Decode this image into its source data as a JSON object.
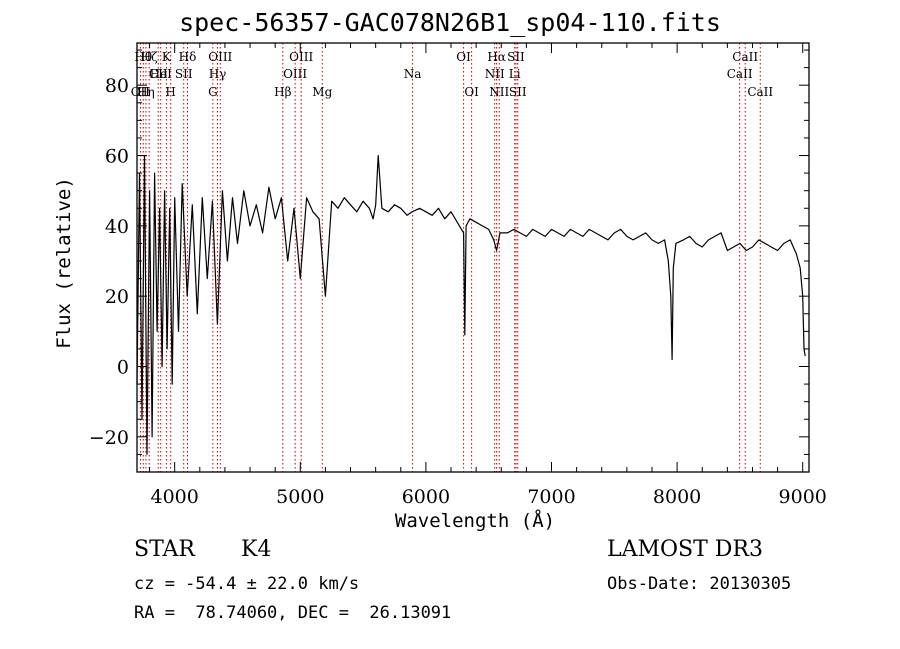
{
  "chart_data": {
    "type": "line",
    "title": "spec-56357-GAC078N26B1_sp04-110.fits",
    "xlabel": "Wavelength (Å)",
    "ylabel": "Flux (relative)",
    "xlim": [
      3700,
      9050
    ],
    "ylim": [
      -30,
      92
    ],
    "x_ticks": [
      4000,
      5000,
      6000,
      7000,
      8000,
      9000
    ],
    "y_ticks": [
      -20,
      0,
      20,
      40,
      60,
      80
    ],
    "series": [
      {
        "name": "spectrum",
        "x": [
          3700,
          3720,
          3740,
          3760,
          3780,
          3800,
          3820,
          3840,
          3860,
          3880,
          3900,
          3920,
          3940,
          3960,
          3980,
          4000,
          4030,
          4060,
          4100,
          4140,
          4180,
          4220,
          4260,
          4300,
          4340,
          4380,
          4420,
          4460,
          4500,
          4550,
          4600,
          4650,
          4700,
          4750,
          4800,
          4850,
          4900,
          4950,
          5000,
          5050,
          5100,
          5150,
          5200,
          5250,
          5300,
          5350,
          5400,
          5450,
          5500,
          5550,
          5580,
          5600,
          5620,
          5650,
          5700,
          5750,
          5800,
          5850,
          5890,
          5950,
          6000,
          6050,
          6100,
          6150,
          6200,
          6250,
          6300,
          6310,
          6320,
          6350,
          6400,
          6450,
          6500,
          6540,
          6563,
          6590,
          6650,
          6700,
          6750,
          6800,
          6850,
          6900,
          6950,
          7000,
          7050,
          7100,
          7150,
          7200,
          7250,
          7300,
          7350,
          7400,
          7450,
          7500,
          7550,
          7600,
          7650,
          7700,
          7750,
          7800,
          7850,
          7900,
          7930,
          7950,
          7960,
          7970,
          7990,
          8050,
          8100,
          8150,
          8200,
          8250,
          8300,
          8350,
          8400,
          8450,
          8500,
          8550,
          8600,
          8650,
          8700,
          8750,
          8800,
          8850,
          8900,
          8950,
          8980,
          9000,
          9010,
          9020
        ],
        "y": [
          -5,
          55,
          -15,
          60,
          -25,
          50,
          -20,
          55,
          10,
          45,
          0,
          50,
          5,
          45,
          -5,
          48,
          10,
          52,
          20,
          46,
          15,
          48,
          25,
          47,
          12,
          50,
          30,
          48,
          35,
          50,
          40,
          46,
          38,
          51,
          42,
          48,
          30,
          45,
          25,
          48,
          44,
          42,
          20,
          47,
          45,
          48,
          46,
          44,
          47,
          45,
          42,
          46,
          60,
          45,
          44,
          46,
          45,
          43,
          44,
          45,
          44,
          43,
          45,
          42,
          44,
          41,
          38,
          9,
          40,
          42,
          41,
          40,
          39,
          36,
          33,
          38,
          38,
          39,
          38,
          37,
          39,
          38,
          37,
          39,
          38,
          37,
          39,
          38,
          37,
          39,
          38,
          37,
          36,
          38,
          39,
          37,
          36,
          37,
          38,
          36,
          35,
          36,
          30,
          20,
          2,
          28,
          35,
          36,
          37,
          35,
          34,
          36,
          37,
          38,
          33,
          34,
          35,
          33,
          34,
          36,
          35,
          34,
          33,
          35,
          36,
          32,
          28,
          20,
          5,
          3
        ]
      }
    ],
    "line_markers": [
      {
        "wavelength": 3727,
        "label": "OII",
        "row": 2
      },
      {
        "wavelength": 3750,
        "label": "Hθ",
        "row": 0
      },
      {
        "wavelength": 3771,
        "label": "Hη",
        "row": 2
      },
      {
        "wavelength": 3797,
        "label": "Hζ",
        "row": 0
      },
      {
        "wavelength": 3869,
        "label": "CII",
        "row": 1
      },
      {
        "wavelength": 3889,
        "label": "HeI",
        "row": 1
      },
      {
        "wavelength": 3934,
        "label": "K",
        "row": 0
      },
      {
        "wavelength": 3968,
        "label": "H",
        "row": 2
      },
      {
        "wavelength": 4072,
        "label": "SII",
        "row": 1
      },
      {
        "wavelength": 4102,
        "label": "Hδ",
        "row": 0
      },
      {
        "wavelength": 4304,
        "label": "G",
        "row": 2
      },
      {
        "wavelength": 4341,
        "label": "Hγ",
        "row": 1
      },
      {
        "wavelength": 4363,
        "label": "OIII",
        "row": 0
      },
      {
        "wavelength": 4861,
        "label": "Hβ",
        "row": 2
      },
      {
        "wavelength": 4959,
        "label": "OIII",
        "row": 1
      },
      {
        "wavelength": 5007,
        "label": "OIII",
        "row": 0
      },
      {
        "wavelength": 5175,
        "label": "Mg",
        "row": 2
      },
      {
        "wavelength": 5894,
        "label": "Na",
        "row": 1
      },
      {
        "wavelength": 6300,
        "label": "OI",
        "row": 0
      },
      {
        "wavelength": 6364,
        "label": "OI",
        "row": 2
      },
      {
        "wavelength": 6548,
        "label": "NII",
        "row": 1
      },
      {
        "wavelength": 6563,
        "label": "Hα",
        "row": 0
      },
      {
        "wavelength": 6584,
        "label": "NII",
        "row": 2
      },
      {
        "wavelength": 6707,
        "label": "Li",
        "row": 1
      },
      {
        "wavelength": 6717,
        "label": "SII",
        "row": 0
      },
      {
        "wavelength": 6731,
        "label": "SII",
        "row": 2
      },
      {
        "wavelength": 8498,
        "label": "CaII",
        "row": 1
      },
      {
        "wavelength": 8542,
        "label": "CaII",
        "row": 0
      },
      {
        "wavelength": 8662,
        "label": "CaII",
        "row": 2
      }
    ]
  },
  "info": {
    "class": "STAR",
    "subclass": "K4",
    "survey": "LAMOST DR3",
    "cz": "cz = -54.4 ± 22.0 km/s",
    "obs_date": "Obs-Date: 20130305",
    "coords": "RA =  78.74060, DEC =  26.13091"
  },
  "colors": {
    "spectrum": "#000000",
    "marker": "#cc0000",
    "axes": "#000000"
  }
}
